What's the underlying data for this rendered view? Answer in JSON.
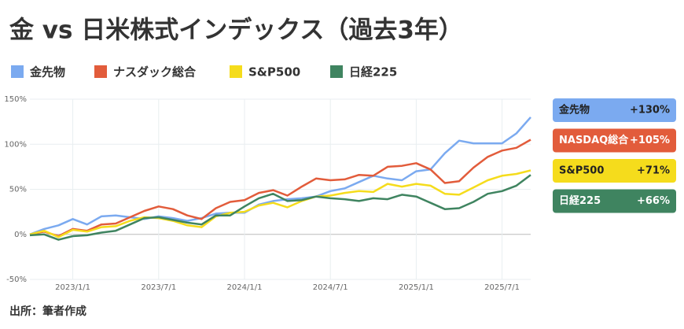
{
  "chart_data": {
    "type": "line",
    "title": "金 vs 日米株式インデックス（過去3年）",
    "source": "出所：筆者作成",
    "x": [
      "2022/10/1",
      "2022/11/1",
      "2022/12/1",
      "2023/1/1",
      "2023/2/1",
      "2023/3/1",
      "2023/4/1",
      "2023/5/1",
      "2023/6/1",
      "2023/7/1",
      "2023/8/1",
      "2023/9/1",
      "2023/10/1",
      "2023/11/1",
      "2023/12/1",
      "2024/1/1",
      "2024/2/1",
      "2024/3/1",
      "2024/4/1",
      "2024/5/1",
      "2024/6/1",
      "2024/7/1",
      "2024/8/1",
      "2024/9/1",
      "2024/10/1",
      "2024/11/1",
      "2024/12/1",
      "2025/1/1",
      "2025/2/1",
      "2025/3/1",
      "2025/4/1",
      "2025/5/1",
      "2025/6/1",
      "2025/7/1",
      "2025/8/1",
      "2025/9/1"
    ],
    "xlim": [
      "2022/10/1",
      "2025/9/1"
    ],
    "xticks": [
      "2023/1/1",
      "2023/7/1",
      "2024/1/1",
      "2024/7/1",
      "2025/1/1",
      "2025/7/1"
    ],
    "ylim": [
      -50,
      150
    ],
    "yticks": [
      {
        "value": -50,
        "label": "-50%"
      },
      {
        "value": 0,
        "label": "0%"
      },
      {
        "value": 50,
        "label": "50%"
      },
      {
        "value": 100,
        "label": "100%"
      },
      {
        "value": 150,
        "label": "150%"
      }
    ],
    "grid": true,
    "legend": "top",
    "series": [
      {
        "name": "金先物",
        "color": "#7baaf0",
        "end_label": "金先物",
        "end_value_label": "+130%",
        "values": [
          0,
          6,
          10,
          17,
          11,
          20,
          21,
          19,
          17,
          20,
          18,
          15,
          18,
          23,
          24,
          24,
          33,
          37,
          39,
          40,
          42,
          48,
          51,
          58,
          65,
          62,
          60,
          70,
          72,
          90,
          104,
          101,
          101,
          101,
          112,
          130
        ]
      },
      {
        "name": "ナスダック総合",
        "color": "#e25c3b",
        "end_label": "NASDAQ総合",
        "end_value_label": "+105%",
        "values": [
          0,
          3,
          -2,
          6,
          4,
          11,
          12,
          19,
          26,
          31,
          28,
          21,
          17,
          29,
          36,
          38,
          46,
          49,
          43,
          53,
          62,
          60,
          61,
          66,
          65,
          75,
          76,
          79,
          72,
          57,
          59,
          74,
          86,
          93,
          96,
          105
        ]
      },
      {
        "name": "S&P500",
        "color": "#f5dc1c",
        "end_label": "S&P500",
        "end_value_label": "+71%",
        "values": [
          0,
          4,
          -3,
          5,
          3,
          8,
          9,
          15,
          19,
          18,
          15,
          10,
          8,
          20,
          24,
          25,
          32,
          35,
          30,
          37,
          42,
          43,
          46,
          48,
          47,
          56,
          53,
          56,
          54,
          45,
          44,
          52,
          60,
          65,
          67,
          71
        ]
      },
      {
        "name": "日経225",
        "color": "#3f8460",
        "end_label": "日経225",
        "end_value_label": "+66%",
        "values": [
          -1,
          0,
          -6,
          -2,
          -1,
          2,
          4,
          11,
          18,
          19,
          16,
          13,
          11,
          21,
          21,
          31,
          40,
          45,
          37,
          38,
          42,
          40,
          39,
          37,
          40,
          39,
          44,
          42,
          35,
          28,
          29,
          36,
          45,
          48,
          54,
          66
        ]
      }
    ]
  }
}
